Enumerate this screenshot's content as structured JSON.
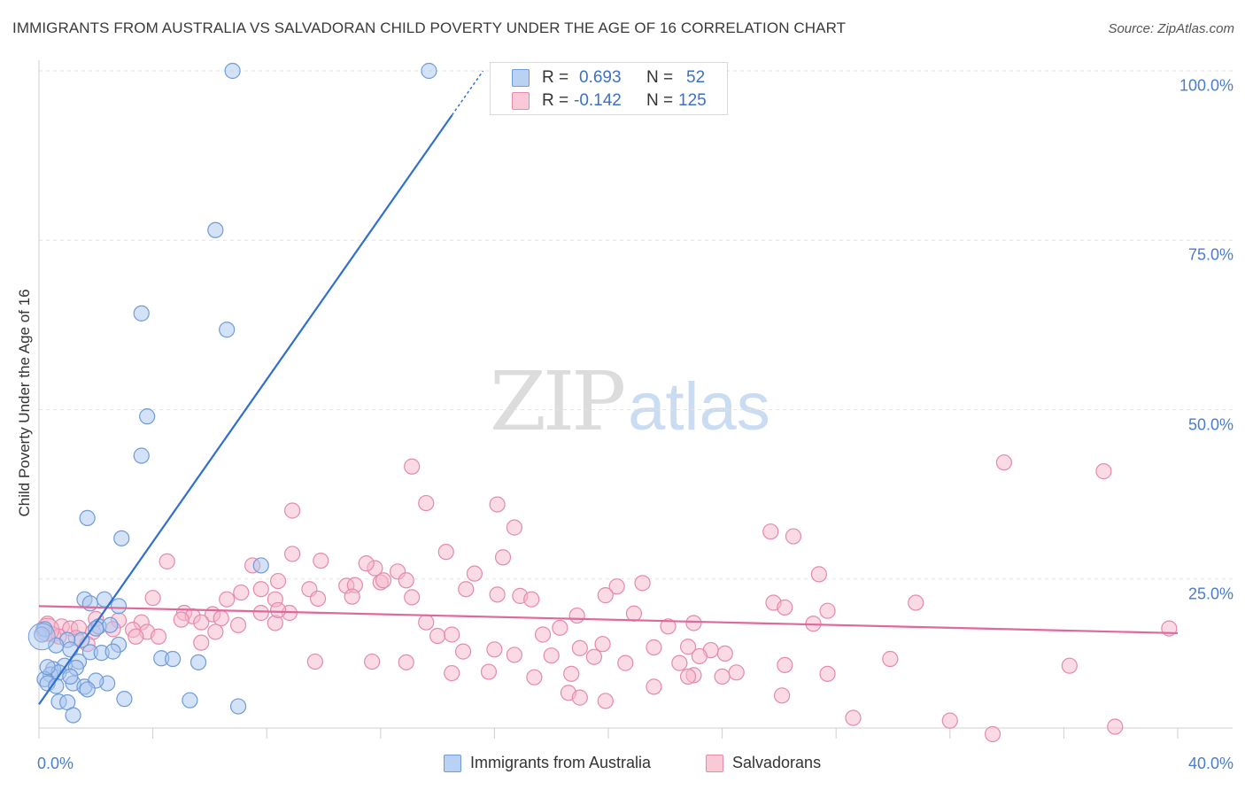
{
  "title": "IMMIGRANTS FROM AUSTRALIA VS SALVADORAN CHILD POVERTY UNDER THE AGE OF 16 CORRELATION CHART",
  "source": "Source: ZipAtlas.com",
  "watermark": {
    "zip": "ZIP",
    "atlas": "atlas"
  },
  "colors": {
    "blue_fill": "#a9c6ef",
    "blue_stroke": "#6f9bd8",
    "blue_line": "#2f6fd0",
    "pink_fill": "#f6b6cb",
    "pink_stroke": "#e58aa8",
    "pink_line": "#e0689a",
    "tick_text": "#4a7dcf",
    "grid": "#e3e3e3"
  },
  "legend_top": {
    "rows": [
      {
        "r_label": "R =",
        "r_value": "0.693",
        "n_label": "N =",
        "n_value": "52"
      },
      {
        "r_label": "R =",
        "r_value": "-0.142",
        "n_label": "N =",
        "n_value": "125"
      }
    ]
  },
  "legend_bottom": [
    "Immigrants from Australia",
    "Salvadorans"
  ],
  "chart_data": {
    "type": "scatter",
    "title": "IMMIGRANTS FROM AUSTRALIA VS SALVADORAN CHILD POVERTY UNDER THE AGE OF 16 CORRELATION CHART",
    "xlabel": "",
    "ylabel": "Child Poverty Under the Age of 16",
    "xlim": [
      0,
      40
    ],
    "ylim": [
      0,
      102
    ],
    "x_tick_labels": [
      "0.0%",
      "40.0%"
    ],
    "y_ticks": [
      25,
      50,
      75,
      100
    ],
    "y_tick_labels": [
      "25.0%",
      "50.0%",
      "75.0%",
      "100.0%"
    ],
    "grid": true,
    "legend_position": "top-center",
    "series": [
      {
        "name": "Immigrants from Australia",
        "color": "#a9c6ef",
        "r": 0.693,
        "n": 52,
        "trend": {
          "x": [
            0,
            15.6
          ],
          "y": [
            6.5,
            100
          ]
        },
        "points": [
          [
            6.8,
            100
          ],
          [
            13.7,
            100
          ],
          [
            6.2,
            76.5
          ],
          [
            3.6,
            64.2
          ],
          [
            6.6,
            61.8
          ],
          [
            3.8,
            49
          ],
          [
            3.6,
            43.2
          ],
          [
            1.7,
            34
          ],
          [
            2.9,
            31
          ],
          [
            7.8,
            27
          ],
          [
            1.6,
            22
          ],
          [
            2.3,
            22
          ],
          [
            2.8,
            21
          ],
          [
            1.8,
            21.4
          ],
          [
            2.1,
            18
          ],
          [
            2.5,
            18.2
          ],
          [
            1.5,
            16
          ],
          [
            1.0,
            16
          ],
          [
            2.8,
            15.3
          ],
          [
            0.2,
            17.6
          ],
          [
            0.1,
            16.8
          ],
          [
            0.6,
            15.2
          ],
          [
            1.1,
            14.6
          ],
          [
            1.8,
            14.2
          ],
          [
            2.2,
            14.1
          ],
          [
            2.6,
            14.3
          ],
          [
            1.4,
            12.8
          ],
          [
            0.9,
            12.2
          ],
          [
            0.5,
            11.7
          ],
          [
            0.4,
            10.9
          ],
          [
            0.7,
            11.2
          ],
          [
            1.3,
            11.9
          ],
          [
            0.2,
            10.2
          ],
          [
            0.3,
            9.6
          ],
          [
            0.6,
            9.2
          ],
          [
            1.2,
            9.6
          ],
          [
            1.6,
            9.1
          ],
          [
            2.4,
            9.6
          ],
          [
            4.3,
            13.3
          ],
          [
            4.7,
            13.2
          ],
          [
            5.6,
            12.7
          ],
          [
            2.0,
            10.0
          ],
          [
            1.7,
            8.7
          ],
          [
            3.0,
            7.3
          ],
          [
            5.3,
            7.1
          ],
          [
            0.7,
            6.9
          ],
          [
            1.0,
            6.8
          ],
          [
            7.0,
            6.2
          ],
          [
            1.2,
            4.9
          ],
          [
            1.1,
            10.6
          ],
          [
            0.3,
            12.0
          ],
          [
            2.0,
            17.7
          ]
        ]
      },
      {
        "name": "Salvadorans",
        "color": "#f6b6cb",
        "r": -0.142,
        "n": 125,
        "trend": {
          "x": [
            0,
            40
          ],
          "y": [
            21,
            17
          ]
        },
        "points": [
          [
            13.1,
            41.6
          ],
          [
            33.9,
            42.2
          ],
          [
            37.4,
            40.9
          ],
          [
            13.6,
            36.2
          ],
          [
            16.1,
            36.0
          ],
          [
            8.9,
            35.1
          ],
          [
            16.7,
            32.6
          ],
          [
            25.7,
            32.0
          ],
          [
            26.5,
            31.3
          ],
          [
            14.3,
            29.0
          ],
          [
            16.3,
            28.2
          ],
          [
            8.9,
            28.7
          ],
          [
            4.5,
            27.6
          ],
          [
            9.9,
            27.7
          ],
          [
            7.5,
            27.0
          ],
          [
            11.8,
            26.6
          ],
          [
            11.5,
            27.3
          ],
          [
            12.6,
            26.1
          ],
          [
            15.3,
            25.8
          ],
          [
            27.4,
            25.7
          ],
          [
            8.4,
            24.7
          ],
          [
            10.8,
            24.0
          ],
          [
            11.1,
            24.1
          ],
          [
            12.0,
            24.5
          ],
          [
            12.1,
            24.8
          ],
          [
            12.9,
            24.8
          ],
          [
            7.8,
            23.5
          ],
          [
            9.5,
            23.5
          ],
          [
            15.0,
            23.5
          ],
          [
            16.1,
            22.7
          ],
          [
            20.3,
            23.9
          ],
          [
            21.2,
            24.4
          ],
          [
            7.1,
            23.0
          ],
          [
            6.6,
            22.0
          ],
          [
            8.3,
            22.0
          ],
          [
            9.8,
            22.1
          ],
          [
            11.0,
            22.4
          ],
          [
            13.1,
            22.3
          ],
          [
            16.9,
            22.5
          ],
          [
            17.3,
            22.0
          ],
          [
            19.9,
            22.6
          ],
          [
            25.8,
            21.5
          ],
          [
            26.2,
            20.8
          ],
          [
            27.7,
            20.3
          ],
          [
            30.8,
            21.5
          ],
          [
            4.0,
            22.2
          ],
          [
            7.8,
            20.0
          ],
          [
            8.8,
            20.0
          ],
          [
            5.1,
            20.0
          ],
          [
            6.1,
            19.8
          ],
          [
            5.4,
            19.5
          ],
          [
            6.4,
            19.2
          ],
          [
            18.9,
            19.6
          ],
          [
            20.9,
            19.9
          ],
          [
            2.0,
            19.1
          ],
          [
            2.8,
            18.9
          ],
          [
            3.6,
            18.6
          ],
          [
            5.0,
            19.0
          ],
          [
            5.7,
            18.6
          ],
          [
            7.0,
            18.2
          ],
          [
            8.3,
            18.5
          ],
          [
            13.6,
            18.6
          ],
          [
            22.1,
            18.0
          ],
          [
            23.0,
            18.5
          ],
          [
            27.2,
            18.4
          ],
          [
            39.7,
            17.7
          ],
          [
            0.3,
            18.4
          ],
          [
            0.8,
            18.0
          ],
          [
            1.1,
            17.7
          ],
          [
            1.4,
            17.8
          ],
          [
            1.9,
            17.2
          ],
          [
            2.6,
            17.6
          ],
          [
            3.3,
            17.5
          ],
          [
            3.8,
            17.2
          ],
          [
            6.2,
            17.2
          ],
          [
            0.5,
            16.8
          ],
          [
            1.3,
            16.3
          ],
          [
            0.7,
            16.5
          ],
          [
            3.4,
            16.5
          ],
          [
            4.2,
            16.5
          ],
          [
            14.0,
            16.6
          ],
          [
            14.5,
            16.8
          ],
          [
            17.7,
            16.8
          ],
          [
            18.3,
            17.8
          ],
          [
            5.7,
            15.6
          ],
          [
            1.7,
            15.4
          ],
          [
            19.8,
            15.4
          ],
          [
            19.0,
            14.8
          ],
          [
            21.6,
            14.9
          ],
          [
            22.8,
            15.0
          ],
          [
            16.0,
            14.6
          ],
          [
            14.9,
            14.3
          ],
          [
            23.6,
            14.5
          ],
          [
            24.1,
            14.0
          ],
          [
            16.7,
            13.8
          ],
          [
            18.0,
            13.7
          ],
          [
            19.5,
            13.5
          ],
          [
            23.2,
            13.6
          ],
          [
            29.9,
            13.2
          ],
          [
            11.7,
            12.8
          ],
          [
            9.7,
            12.8
          ],
          [
            12.9,
            12.7
          ],
          [
            20.6,
            12.6
          ],
          [
            22.5,
            12.6
          ],
          [
            26.2,
            12.3
          ],
          [
            36.2,
            12.2
          ],
          [
            14.5,
            11.1
          ],
          [
            18.7,
            11.0
          ],
          [
            24.5,
            11.2
          ],
          [
            17.4,
            10.5
          ],
          [
            23.0,
            10.8
          ],
          [
            22.8,
            10.6
          ],
          [
            24.0,
            10.6
          ],
          [
            27.7,
            11.0
          ],
          [
            21.6,
            9.1
          ],
          [
            18.6,
            8.2
          ],
          [
            19.0,
            7.5
          ],
          [
            19.9,
            7.0
          ],
          [
            26.1,
            7.8
          ],
          [
            28.6,
            4.5
          ],
          [
            32.0,
            4.1
          ],
          [
            33.5,
            2.1
          ],
          [
            37.8,
            3.2
          ],
          [
            15.8,
            11.3
          ],
          [
            8.4,
            20.4
          ]
        ]
      }
    ]
  }
}
